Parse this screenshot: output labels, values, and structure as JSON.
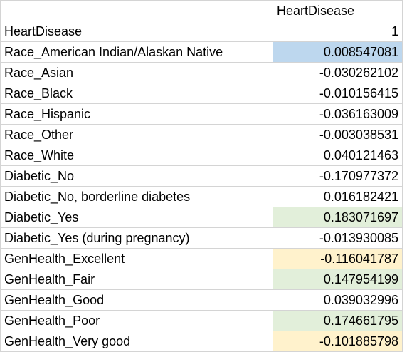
{
  "sheet": {
    "header": "HeartDisease",
    "rows": [
      {
        "label": "HeartDisease",
        "value": "1",
        "fill": ""
      },
      {
        "label": "Race_American Indian/Alaskan Native",
        "value": "0.008547081",
        "fill": "#bdd7ee"
      },
      {
        "label": "Race_Asian",
        "value": "-0.030262102",
        "fill": ""
      },
      {
        "label": "Race_Black",
        "value": "-0.010156415",
        "fill": ""
      },
      {
        "label": "Race_Hispanic",
        "value": "-0.036163009",
        "fill": ""
      },
      {
        "label": "Race_Other",
        "value": "-0.003038531",
        "fill": ""
      },
      {
        "label": "Race_White",
        "value": "0.040121463",
        "fill": ""
      },
      {
        "label": "Diabetic_No",
        "value": "-0.170977372",
        "fill": ""
      },
      {
        "label": "Diabetic_No, borderline diabetes",
        "value": "0.016182421",
        "fill": ""
      },
      {
        "label": "Diabetic_Yes",
        "value": "0.183071697",
        "fill": "#e2efda"
      },
      {
        "label": "Diabetic_Yes (during pregnancy)",
        "value": "-0.013930085",
        "fill": ""
      },
      {
        "label": "GenHealth_Excellent",
        "value": "-0.116041787",
        "fill": "#fff2cc"
      },
      {
        "label": "GenHealth_Fair",
        "value": "0.147954199",
        "fill": "#e2efda"
      },
      {
        "label": "GenHealth_Good",
        "value": "0.039032996",
        "fill": ""
      },
      {
        "label": "GenHealth_Poor",
        "value": "0.174661795",
        "fill": "#e2efda"
      },
      {
        "label": "GenHealth_Very good",
        "value": "-0.101885798",
        "fill": "#fff2cc"
      }
    ]
  }
}
